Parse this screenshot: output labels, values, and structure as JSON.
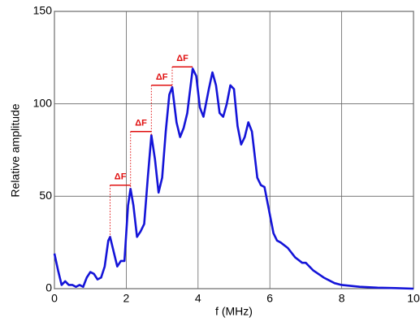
{
  "chart_data": {
    "type": "line",
    "xlabel": "f (MHz)",
    "ylabel": "Relative amplitude",
    "x": [
      0,
      0.1,
      0.2,
      0.3,
      0.4,
      0.5,
      0.6,
      0.7,
      0.8,
      0.9,
      1.0,
      1.1,
      1.2,
      1.3,
      1.4,
      1.5,
      1.55,
      1.65,
      1.75,
      1.85,
      1.95,
      2.05,
      2.12,
      2.2,
      2.3,
      2.4,
      2.5,
      2.6,
      2.7,
      2.8,
      2.9,
      3.0,
      3.1,
      3.2,
      3.28,
      3.4,
      3.5,
      3.6,
      3.7,
      3.85,
      3.95,
      4.05,
      4.15,
      4.3,
      4.4,
      4.5,
      4.6,
      4.7,
      4.8,
      4.9,
      5.0,
      5.1,
      5.2,
      5.3,
      5.4,
      5.5,
      5.65,
      5.75,
      5.85,
      5.95,
      6.1,
      6.2,
      6.3,
      6.5,
      6.7,
      6.9,
      7.0,
      7.2,
      7.5,
      7.8,
      8.0,
      8.5,
      9.0,
      9.5,
      10
    ],
    "values": [
      19,
      10,
      2,
      4,
      2,
      2,
      1,
      2,
      1,
      6,
      9,
      8,
      5,
      6,
      12,
      26,
      28,
      20,
      12,
      15,
      15,
      45,
      54,
      45,
      28,
      31,
      35,
      60,
      83,
      70,
      52,
      60,
      85,
      105,
      109,
      90,
      82,
      87,
      95,
      119,
      115,
      98,
      93,
      108,
      117,
      110,
      95,
      93,
      100,
      110,
      108,
      88,
      78,
      82,
      90,
      85,
      60,
      56,
      55,
      45,
      30,
      26,
      25,
      22,
      17,
      14,
      14,
      10,
      6,
      3,
      2,
      1,
      0.5,
      0.3,
      0
    ],
    "color": "#1414d8",
    "xlim": [
      0,
      10
    ],
    "xticks": [
      0,
      2,
      4,
      6,
      8,
      10
    ],
    "ylim": [
      0,
      150
    ],
    "yticks": [
      0,
      50,
      100,
      150
    ],
    "grid": true,
    "annotations": [
      {
        "label": "ΔF",
        "x1": 1.55,
        "x2": 2.12,
        "y": 56,
        "y0": 28
      },
      {
        "label": "ΔF",
        "x1": 2.12,
        "x2": 2.7,
        "y": 85,
        "y0": 54
      },
      {
        "label": "ΔF",
        "x1": 2.7,
        "x2": 3.28,
        "y": 110,
        "y0": 83
      },
      {
        "label": "ΔF",
        "x1": 3.28,
        "x2": 3.85,
        "y": 120,
        "y0": 109
      }
    ],
    "annotation_color": "#e01010"
  }
}
